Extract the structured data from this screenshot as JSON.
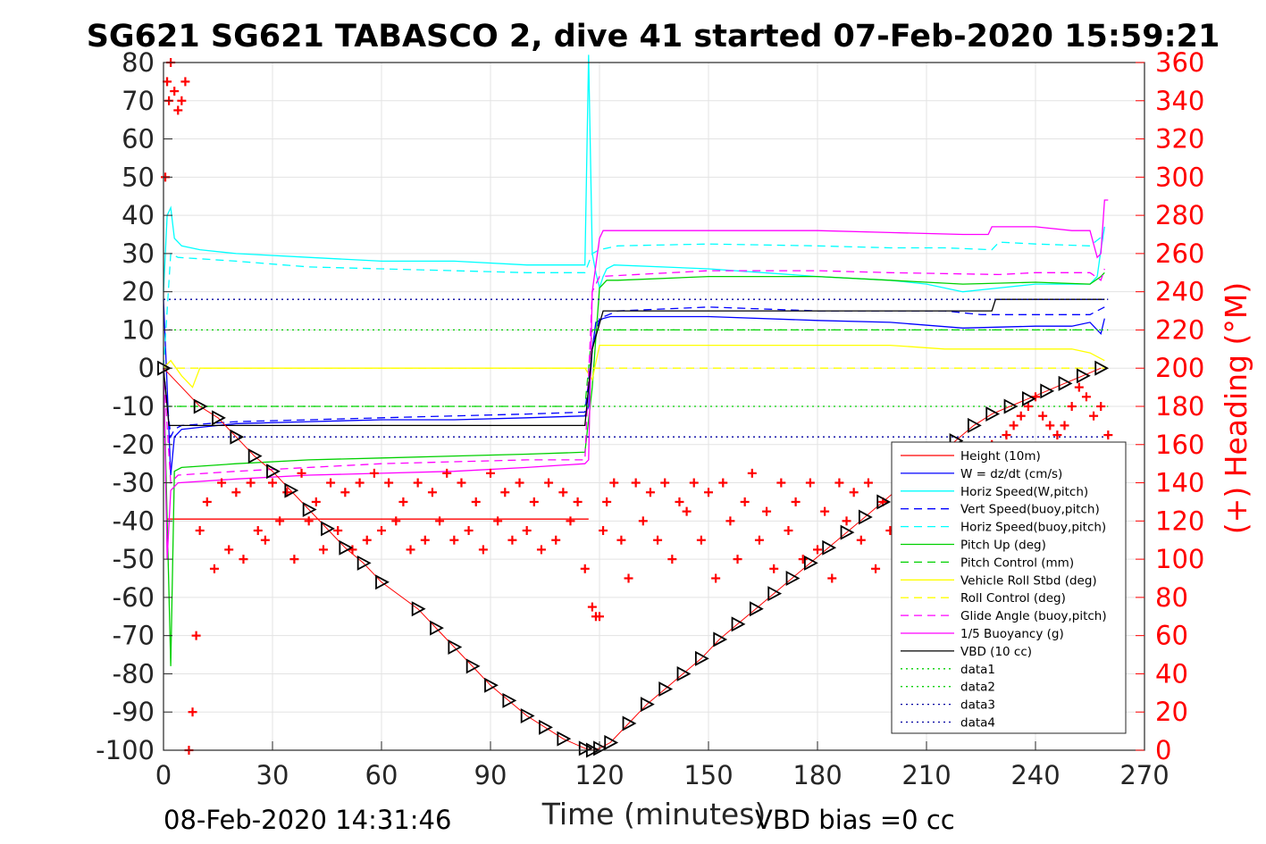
{
  "chart_data": {
    "type": "line",
    "title": "SG621 SG621 TABASCO 2, dive 41 started 07-Feb-2020 15:59:21",
    "xlabel": "Time (minutes)",
    "ylabel": "",
    "y2label": "(+) Heading (°M)",
    "xlim": [
      0,
      270
    ],
    "ylim": [
      -100,
      80
    ],
    "y2lim": [
      0,
      360
    ],
    "x_ticks": [
      "0",
      "30",
      "60",
      "90",
      "120",
      "150",
      "180",
      "210",
      "240",
      "270"
    ],
    "y_ticks": [
      "-100",
      "-90",
      "-80",
      "-70",
      "-60",
      "-50",
      "-40",
      "-30",
      "-20",
      "-10",
      "0",
      "10",
      "20",
      "30",
      "40",
      "50",
      "60",
      "70",
      "80"
    ],
    "y2_ticks": [
      "0",
      "20",
      "40",
      "60",
      "80",
      "100",
      "120",
      "140",
      "160",
      "180",
      "200",
      "220",
      "240",
      "260",
      "280",
      "300",
      "320",
      "340",
      "360"
    ],
    "grid": true,
    "legend_position": "bottom-right",
    "footer_left": "08-Feb-2020 14:31:46",
    "footer_right": "VBD bias =0 cc",
    "series": [
      {
        "name": "Height (10m)",
        "color": "#ff0000",
        "style": "solid",
        "x": [
          1,
          117
        ],
        "y": [
          -39.5,
          -39.5
        ]
      },
      {
        "name": "W = dz/dt (cm/s)",
        "color": "#0000ff",
        "style": "solid",
        "x": [
          0,
          1,
          2,
          3,
          5,
          10,
          20,
          40,
          60,
          80,
          100,
          116,
          117,
          118,
          119,
          121,
          123,
          125,
          150,
          180,
          200,
          220,
          240,
          250,
          255,
          258,
          259
        ],
        "y": [
          18,
          -5,
          -28,
          -18,
          -16,
          -15.5,
          -14.5,
          -14,
          -13.5,
          -13.5,
          -13,
          -12.5,
          -10,
          5,
          12,
          13,
          13.5,
          13.5,
          13.5,
          12.5,
          12,
          10.5,
          11,
          11,
          12,
          9,
          13
        ]
      },
      {
        "name": "Horiz Speed(W,pitch)",
        "color": "#00ffff",
        "style": "solid",
        "x": [
          0,
          1,
          2,
          3,
          5,
          10,
          20,
          40,
          60,
          80,
          100,
          116,
          117,
          118,
          119,
          120,
          121,
          122,
          124,
          150,
          180,
          200,
          210,
          220,
          230,
          240,
          255,
          257,
          258,
          259
        ],
        "y": [
          20,
          40,
          42,
          34,
          32,
          31,
          30,
          29,
          28,
          28,
          27,
          27,
          82,
          30,
          25,
          21,
          24,
          26,
          27,
          26,
          24,
          23,
          22,
          20,
          21,
          22,
          22,
          24,
          31,
          37
        ]
      },
      {
        "name": "Vert Speed(buoy,pitch)",
        "color": "#0000ff",
        "style": "dashed",
        "x": [
          0,
          2,
          3,
          5,
          20,
          40,
          60,
          80,
          100,
          116,
          118,
          120,
          125,
          150,
          180,
          200,
          215,
          225,
          240,
          255,
          259
        ],
        "y": [
          0,
          -18,
          -16,
          -15,
          -14,
          -13.5,
          -13,
          -12.5,
          -12,
          -11.5,
          5,
          13,
          15,
          16,
          15,
          15,
          15,
          14,
          14,
          14,
          16
        ]
      },
      {
        "name": "Horiz Speed(buoy,pitch)",
        "color": "#00ffff",
        "style": "dashed",
        "x": [
          0,
          2,
          4,
          20,
          40,
          60,
          80,
          100,
          116,
          118,
          120,
          125,
          150,
          180,
          200,
          215,
          228,
          230,
          240,
          255,
          259
        ],
        "y": [
          0,
          30,
          29,
          28,
          26.5,
          26,
          25.5,
          25,
          25,
          30,
          31,
          32,
          32.5,
          32,
          31.5,
          31.5,
          31,
          33,
          32.5,
          32,
          35
        ]
      },
      {
        "name": "Pitch Up (deg)",
        "color": "#00d000",
        "style": "solid",
        "x": [
          0,
          2,
          3,
          5,
          20,
          40,
          60,
          80,
          100,
          116,
          118,
          120,
          122,
          125,
          150,
          180,
          200,
          210,
          220,
          240,
          255,
          258,
          259
        ],
        "y": [
          0,
          -78,
          -27,
          -26,
          -25,
          -24,
          -23.5,
          -23,
          -22.5,
          -22,
          -5,
          21,
          23,
          23,
          24,
          24,
          23,
          22.5,
          22,
          22.5,
          22,
          24,
          25
        ]
      },
      {
        "name": "Pitch Control (mm)",
        "color": "#00d000",
        "style": "dashed",
        "x": [
          0,
          116,
          118,
          258
        ],
        "y": [
          -10,
          -10,
          10,
          10
        ]
      },
      {
        "name": "Vehicle Roll Stbd (deg)",
        "color": "#ffff00",
        "style": "solid",
        "x": [
          0,
          2,
          5,
          8,
          10,
          20,
          40,
          60,
          80,
          100,
          116,
          118,
          120,
          150,
          180,
          200,
          215,
          230,
          250,
          255,
          259
        ],
        "y": [
          0,
          2,
          -2,
          -5,
          0,
          0,
          0,
          0,
          0,
          0,
          0,
          -3,
          6,
          6,
          6,
          6,
          5,
          5,
          5,
          4,
          2
        ]
      },
      {
        "name": "Roll Control (deg)",
        "color": "#ffff00",
        "style": "dashed",
        "x": [
          0,
          116,
          118,
          259
        ],
        "y": [
          0,
          0,
          0,
          0
        ]
      },
      {
        "name": "Glide Angle (buoy,pitch)",
        "color": "#ff00ff",
        "style": "dashed",
        "x": [
          0,
          2,
          4,
          20,
          40,
          60,
          80,
          100,
          116,
          118,
          120,
          150,
          180,
          200,
          230,
          240,
          255,
          258,
          259
        ],
        "y": [
          0,
          -30,
          -28,
          -27,
          -26,
          -25,
          -24.5,
          -24,
          -24,
          20,
          24,
          25.5,
          25.5,
          25,
          24.5,
          25,
          25,
          23,
          26
        ]
      },
      {
        "name": "1/5 Buoyancy (g)",
        "color": "#ff00ff",
        "style": "solid",
        "x": [
          0,
          1,
          2,
          4,
          20,
          40,
          60,
          80,
          100,
          116,
          117,
          118,
          120,
          121,
          150,
          180,
          200,
          220,
          227,
          228,
          240,
          250,
          255,
          257,
          258,
          259,
          260
        ],
        "y": [
          0,
          -50,
          -32,
          -30,
          -29,
          -28,
          -27.5,
          -27,
          -26,
          -25,
          -24,
          20,
          34,
          36,
          36,
          36,
          35.5,
          35,
          35,
          37,
          37,
          36,
          36,
          29,
          30,
          44,
          44
        ]
      },
      {
        "name": "VBD (10 cc)",
        "color": "#000000",
        "style": "solid",
        "x": [
          0,
          1,
          1.5,
          8,
          10,
          116,
          117,
          118,
          121,
          122,
          228,
          229,
          259
        ],
        "y": [
          0,
          -10,
          -15,
          -15,
          -15,
          -15,
          -5,
          5,
          15,
          15,
          15,
          18,
          18
        ]
      },
      {
        "name": "data1",
        "color": "#00d000",
        "style": "dotted",
        "x": [
          0,
          260
        ],
        "y": [
          -10,
          -10
        ]
      },
      {
        "name": "data2",
        "color": "#00d000",
        "style": "dotted",
        "x": [
          0,
          260
        ],
        "y": [
          10,
          10
        ]
      },
      {
        "name": "data3",
        "color": "#0000a0",
        "style": "dotted",
        "x": [
          0,
          260
        ],
        "y": [
          -18,
          -18
        ]
      },
      {
        "name": "data4",
        "color": "#0000a0",
        "style": "dotted",
        "x": [
          0,
          260
        ],
        "y": [
          18,
          18
        ]
      }
    ],
    "depth_markers": {
      "color": "#000000",
      "x": [
        0,
        10,
        15,
        20,
        25,
        30,
        35,
        40,
        45,
        50,
        55,
        60,
        70,
        75,
        80,
        85,
        90,
        95,
        100,
        105,
        110,
        116,
        118,
        120,
        123,
        128,
        133,
        138,
        143,
        148,
        153,
        158,
        163,
        168,
        173,
        178,
        183,
        188,
        193,
        198,
        203,
        208,
        213,
        218,
        223,
        228,
        233,
        238,
        243,
        248,
        253,
        258
      ],
      "y": [
        0,
        -10,
        -13,
        -18,
        -23,
        -27,
        -32,
        -37,
        -42,
        -47,
        -51,
        -56,
        -63,
        -68,
        -73,
        -78,
        -83,
        -87,
        -91,
        -94,
        -97,
        -99.5,
        -100,
        -99.5,
        -98,
        -93,
        -88,
        -84,
        -80,
        -76,
        -71,
        -67,
        -63,
        -59,
        -55,
        -51,
        -47,
        -43,
        -39,
        -35,
        -31,
        -27,
        -23,
        -19,
        -15,
        -12,
        -10,
        -8,
        -6,
        -4,
        -2,
        0
      ]
    },
    "heading_points": {
      "color": "#ff0000",
      "note_axis": "y2",
      "x": [
        0.5,
        1,
        1.5,
        2,
        3,
        4,
        5,
        6,
        7,
        8,
        9,
        10,
        12,
        14,
        16,
        18,
        20,
        22,
        24,
        26,
        28,
        30,
        32,
        34,
        36,
        38,
        40,
        42,
        44,
        46,
        48,
        50,
        52,
        54,
        56,
        58,
        60,
        62,
        64,
        66,
        68,
        70,
        72,
        74,
        76,
        78,
        80,
        82,
        84,
        86,
        88,
        90,
        92,
        94,
        96,
        98,
        100,
        102,
        104,
        106,
        108,
        110,
        112,
        114,
        116,
        118,
        119,
        120,
        121,
        122,
        124,
        126,
        128,
        130,
        132,
        134,
        136,
        138,
        140,
        142,
        144,
        146,
        148,
        150,
        152,
        154,
        156,
        158,
        160,
        162,
        164,
        166,
        168,
        170,
        172,
        174,
        176,
        178,
        180,
        182,
        184,
        186,
        188,
        190,
        192,
        194,
        196,
        198,
        200,
        202,
        204,
        206,
        208,
        210,
        212,
        214,
        216,
        218,
        220,
        222,
        224,
        226,
        228,
        230,
        232,
        234,
        236,
        238,
        240,
        242,
        244,
        246,
        248,
        250,
        252,
        254,
        256,
        258,
        260
      ],
      "y": [
        300,
        350,
        340,
        360,
        345,
        335,
        340,
        350,
        0,
        20,
        60,
        115,
        130,
        95,
        140,
        105,
        135,
        100,
        140,
        115,
        110,
        140,
        120,
        135,
        100,
        145,
        120,
        130,
        105,
        140,
        115,
        135,
        105,
        140,
        110,
        145,
        115,
        140,
        120,
        130,
        105,
        140,
        110,
        135,
        120,
        145,
        110,
        140,
        115,
        130,
        105,
        145,
        120,
        135,
        110,
        140,
        115,
        130,
        105,
        140,
        110,
        135,
        120,
        130,
        95,
        75,
        70,
        70,
        115,
        130,
        140,
        110,
        90,
        140,
        120,
        135,
        110,
        140,
        100,
        130,
        125,
        140,
        110,
        135,
        90,
        140,
        120,
        100,
        130,
        145,
        110,
        125,
        95,
        140,
        115,
        130,
        100,
        140,
        105,
        125,
        90,
        140,
        120,
        135,
        110,
        140,
        95,
        130,
        115,
        140,
        120,
        135,
        100,
        140,
        125,
        145,
        110,
        130,
        120,
        140,
        115,
        135,
        160,
        150,
        165,
        170,
        175,
        180,
        185,
        175,
        170,
        165,
        170,
        180,
        190,
        185,
        175,
        180,
        165
      ]
    }
  }
}
